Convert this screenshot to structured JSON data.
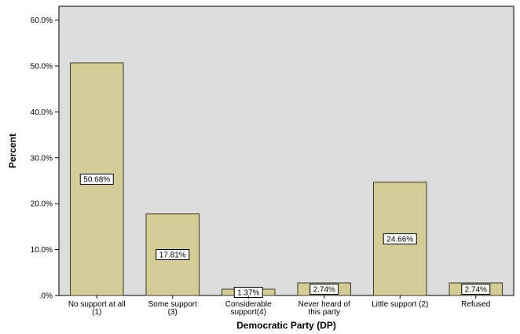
{
  "chart_data": {
    "type": "bar",
    "title": "",
    "xlabel": "Democratic Party (DP)",
    "ylabel": "Percent",
    "categories": [
      [
        "No support at all",
        "(1)"
      ],
      [
        "Some support",
        "(3)"
      ],
      [
        "Considerable",
        "support(4)"
      ],
      [
        "Never heard of",
        "this party"
      ],
      [
        "Little support (2)"
      ],
      [
        "Refused"
      ]
    ],
    "values": [
      50.68,
      17.81,
      1.37,
      2.74,
      24.66,
      2.74
    ],
    "data_labels": [
      "50.68%",
      "17.81%",
      "1.37%",
      "2.74%",
      "24.66%",
      "2.74%"
    ],
    "y_ticks": [
      0,
      10,
      20,
      30,
      40,
      50,
      60
    ],
    "y_tick_labels": [
      ".0%",
      "10.0%",
      "20.0%",
      "30.0%",
      "40.0%",
      "50.0%",
      "60.0%"
    ],
    "ylim": [
      0,
      63
    ],
    "grid": false,
    "legend": "none",
    "colors": {
      "plot_background": "#dcdcdc",
      "bar_fill": "#d4cc96",
      "bar_stroke": "#3a3a2a",
      "axis": "#000000",
      "label_box": "#ffffff"
    }
  }
}
